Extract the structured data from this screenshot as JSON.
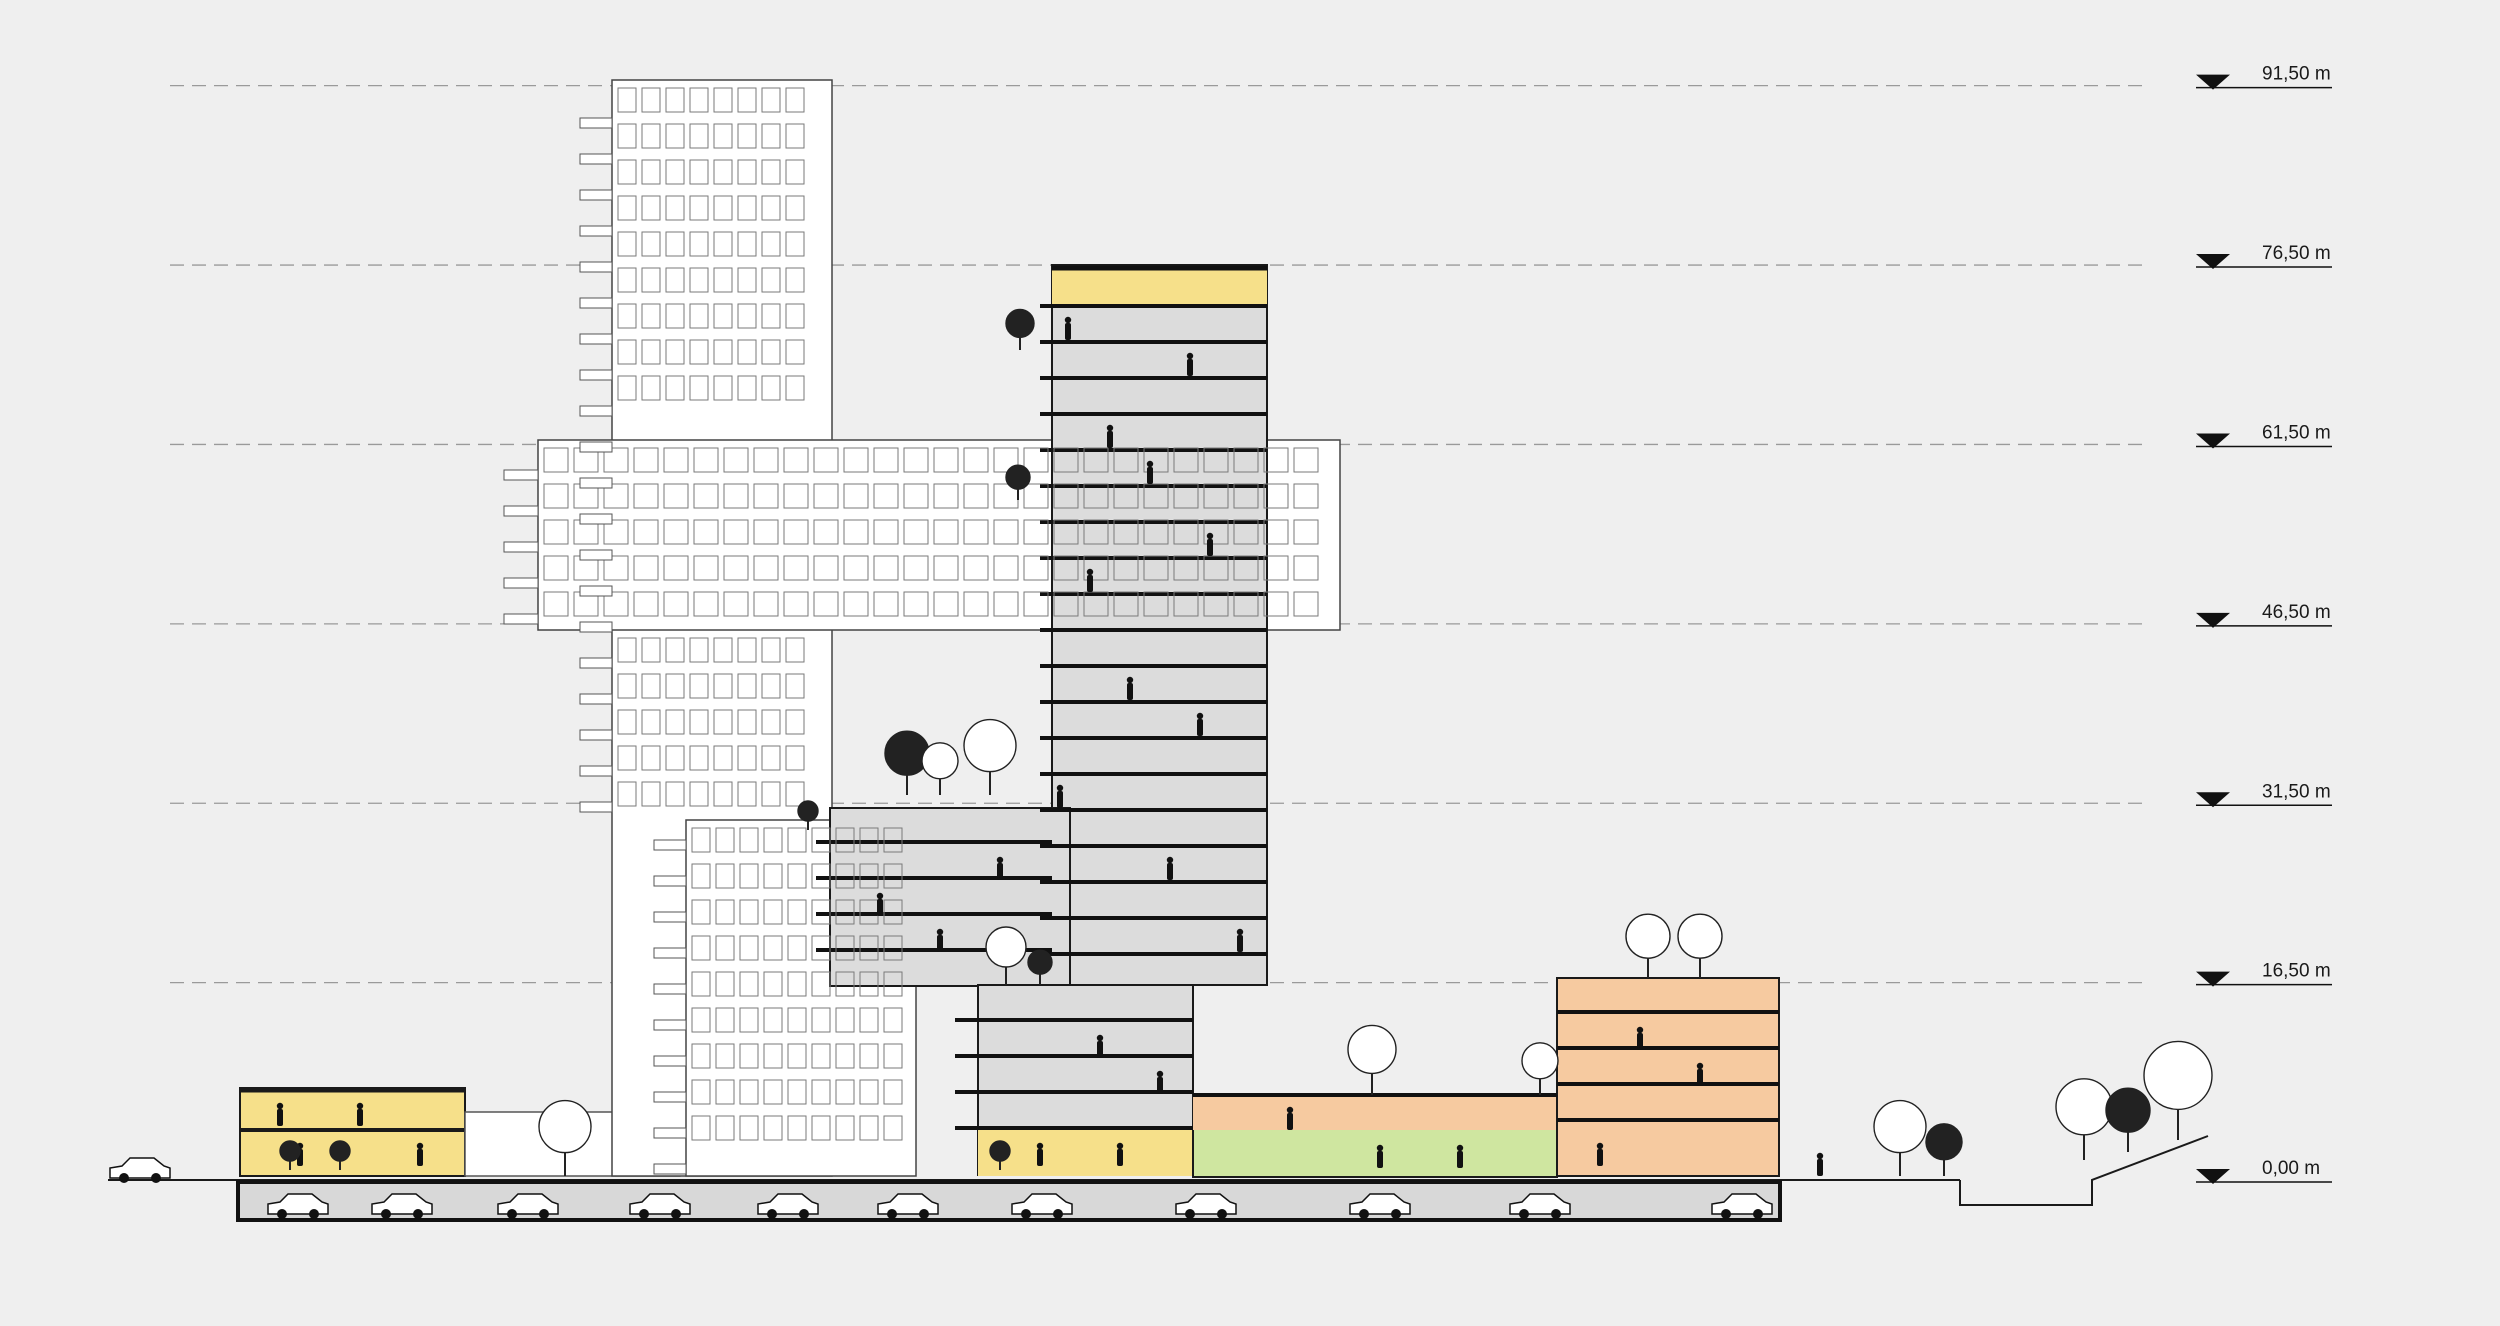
{
  "diagram": {
    "type": "architectural-section",
    "levels": [
      {
        "label": "91,50 m",
        "value": 91.5
      },
      {
        "label": "76,50 m",
        "value": 76.5
      },
      {
        "label": "61,50 m",
        "value": 61.5
      },
      {
        "label": "46,50 m",
        "value": 46.5
      },
      {
        "label": "31,50 m",
        "value": 31.5
      },
      {
        "label": "16,50 m",
        "value": 16.5
      },
      {
        "label": "0,00 m",
        "value": 0
      }
    ]
  },
  "colors": {
    "background": "#efefef",
    "line": "#1a1a1a",
    "facade": "#ffffff",
    "interior": "#dcdcdc",
    "leisure_yellow": "#f6e08a",
    "green_zone": "#cfe6a0",
    "orange_zone": "#f6caa0",
    "ground": "#111111",
    "parking": "#d8d8d8"
  }
}
